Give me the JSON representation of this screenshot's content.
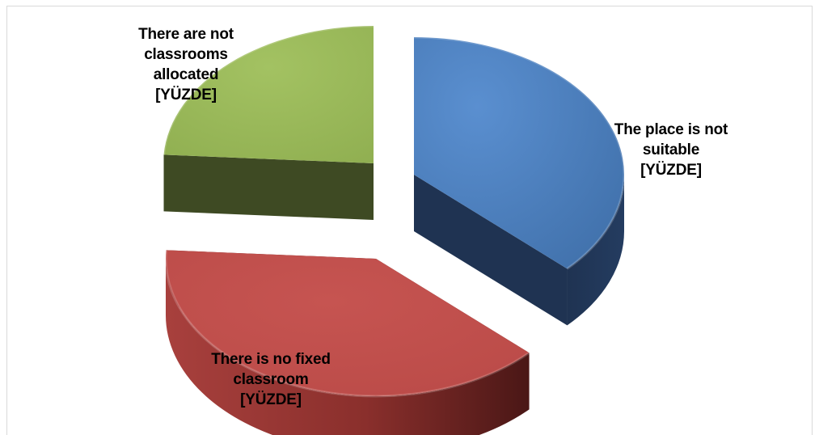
{
  "chart_data": {
    "type": "pie",
    "title": "",
    "slices": [
      {
        "key": "place",
        "label_lines": [
          "The place is not",
          "suitable",
          "[YÜZDE]"
        ],
        "value": 37,
        "color_top": "#4f81bd",
        "color_side": "#1f3352"
      },
      {
        "key": "fixed",
        "label_lines": [
          "There is no fixed",
          "classroom",
          "[YÜZDE]"
        ],
        "value": 39,
        "color_top": "#c0504d",
        "color_side": "#5a1e1d"
      },
      {
        "key": "alloc",
        "label_lines": [
          "There are not",
          "classrooms",
          "allocated",
          "[YÜZDE]"
        ],
        "value": 24,
        "color_top": "#9bbb59",
        "color_side": "#3e4a23"
      }
    ]
  }
}
